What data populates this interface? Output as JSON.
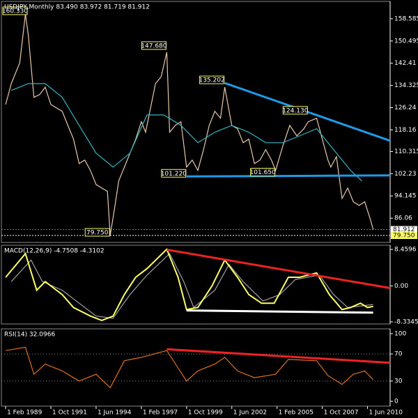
{
  "chart_data": [
    {
      "type": "line",
      "title": "USDJPY,Monthly  83.490 83.972 81.719 81.912",
      "xlim": [
        "1988-11",
        "2011-10"
      ],
      "ylim": [
        77.22,
        164.89
      ],
      "yticks": [
        158.585,
        150.495,
        142.41,
        134.325,
        126.24,
        118.16,
        110.315,
        102.23,
        94.145,
        86.06
      ],
      "series": [
        {
          "color": "#e9c9a8",
          "x": [
            "1989-02",
            "1989-06",
            "1989-12",
            "1990-04",
            "1990-06",
            "1990-10",
            "1991-02",
            "1991-06",
            "1991-10",
            "1992-06",
            "1992-10",
            "1993-02",
            "1993-06",
            "1993-10",
            "1994-02",
            "1994-06",
            "1994-10",
            "1995-02",
            "1995-04",
            "1995-07",
            "1995-10",
            "1996-02",
            "1996-06",
            "1996-10",
            "1997-02",
            "1997-05",
            "1997-12",
            "1998-04",
            "1998-08",
            "1998-10",
            "1999-02",
            "1999-06",
            "1999-10",
            "2000-02",
            "2000-06",
            "2000-10",
            "2001-02",
            "2001-06",
            "2001-10",
            "2002-01",
            "2002-06",
            "2002-10",
            "2003-02",
            "2003-06",
            "2003-10",
            "2004-02",
            "2004-06",
            "2004-10",
            "2005-01",
            "2005-06",
            "2005-11",
            "2006-04",
            "2006-09",
            "2006-12",
            "2007-06",
            "2007-10",
            "2008-02",
            "2008-04",
            "2008-08",
            "2008-12",
            "2009-04",
            "2009-08",
            "2009-12",
            "2010-04",
            "2010-08",
            "2010-10"
          ],
          "values": [
            127.4,
            135,
            142.6,
            160.3,
            152.7,
            130,
            131,
            133.7,
            127.4,
            124.9,
            119.8,
            114.8,
            105.9,
            107.2,
            103.4,
            98.3,
            97,
            95.8,
            79.8,
            89.4,
            99.6,
            104.6,
            109.7,
            114.8,
            121.1,
            117.3,
            135,
            137.5,
            146.4,
            117.3,
            119.8,
            121.1,
            104.6,
            107.2,
            103.4,
            111,
            119.8,
            124.9,
            122.4,
            133.7,
            119.8,
            118.6,
            113.5,
            114.8,
            105.9,
            107.2,
            111,
            107.2,
            103.4,
            112.2,
            119.8,
            116,
            118.6,
            121.1,
            122.4,
            114.8,
            107.2,
            104.6,
            108.4,
            93.2,
            97,
            92,
            90.7,
            92,
            85.6,
            81.9
          ]
        },
        {
          "color": "#2fb8c6",
          "x": [
            "1989-06",
            "1990-06",
            "1991-06",
            "1992-06",
            "1993-06",
            "1994-06",
            "1995-06",
            "1996-06",
            "1997-06",
            "1998-06",
            "1999-06",
            "2000-06",
            "2001-06",
            "2002-06",
            "2003-06",
            "2004-06",
            "2005-06",
            "2006-06",
            "2007-06",
            "2008-06",
            "2009-06",
            "2010-02"
          ],
          "values": [
            132.5,
            135,
            135,
            130,
            119.8,
            109.7,
            104.6,
            109.7,
            123.6,
            123.6,
            119.8,
            113.5,
            117.3,
            119.8,
            117.3,
            113.5,
            113.5,
            116,
            118.6,
            111,
            103.4,
            99.6
          ]
        }
      ],
      "lines": [
        {
          "color": "#1e9be8",
          "x": [
            "2002-01",
            "2011-10"
          ],
          "y": [
            135.2,
            114.2
          ]
        },
        {
          "color": "#1e9be8",
          "x": [
            "1999-10",
            "2011-10"
          ],
          "y": [
            101.22,
            101.6
          ]
        }
      ],
      "hlines": [
        {
          "y": 79.75,
          "color": "#ffffff"
        },
        {
          "y": 81.912,
          "color": "#777777"
        }
      ],
      "annotations": [
        {
          "label": "160.330",
          "x": "1990-04",
          "y": 160.33
        },
        {
          "label": "147.680",
          "x": "1998-08",
          "y": 147.68
        },
        {
          "label": "135.202",
          "x": "2002-01",
          "y": 135.202
        },
        {
          "label": "124.130",
          "x": "2006-12",
          "y": 124.13
        },
        {
          "label": "101.220",
          "x": "1999-10",
          "y": 101.22
        },
        {
          "label": "101.650",
          "x": "2005-01",
          "y": 101.65
        },
        {
          "label": "79.750",
          "x": "1995-04",
          "y": 79.75
        }
      ],
      "price_tags": [
        {
          "label": "81.912",
          "value": 81.912,
          "color": "#ffffff"
        },
        {
          "label": "79.750",
          "value": 79.75,
          "color": "#ffff66"
        }
      ]
    },
    {
      "type": "line",
      "title": "MACD(12,26,9) -4.7508 -4.3102",
      "xlim": [
        "1988-11",
        "2011-10"
      ],
      "ylim": [
        -8.82,
        9.435
      ],
      "yticks": [
        8.4596,
        {
          "value": 0,
          "label": "0.00"
        },
        -8.3345
      ],
      "series": [
        {
          "color": "#a0a0a0",
          "x": [
            "1989-06",
            "1990-08",
            "1991-04",
            "1992-06",
            "1993-06",
            "1994-06",
            "1995-06",
            "1996-06",
            "1997-06",
            "1998-10",
            "1999-08",
            "2000-03",
            "2001-06",
            "2002-04",
            "2003-02",
            "2004-04",
            "2005-04",
            "2006-03",
            "2007-08",
            "2008-06",
            "2009-04",
            "2010-10"
          ],
          "values": [
            1,
            6,
            1,
            -1,
            -4,
            -7,
            -7.5,
            -2,
            2.5,
            7.5,
            1,
            -5,
            -1,
            5,
            1,
            -3.5,
            -2,
            1.5,
            2.5,
            -2,
            -5,
            -4.31
          ]
        },
        {
          "color": "#ffff66",
          "x": [
            "1989-02",
            "1990-04",
            "1990-12",
            "1991-06",
            "1992-06",
            "1993-02",
            "1994-02",
            "1994-10",
            "1995-06",
            "1996-02",
            "1996-10",
            "1997-06",
            "1998-08",
            "1999-04",
            "1999-10",
            "2000-06",
            "2001-04",
            "2002-01",
            "2002-10",
            "2003-06",
            "2004-03",
            "2004-12",
            "2005-10",
            "2006-06",
            "2007-06",
            "2008-03",
            "2008-12",
            "2009-06",
            "2010-01",
            "2010-06",
            "2010-10"
          ],
          "values": [
            2,
            7.5,
            -1,
            1,
            -2,
            -5,
            -7,
            -8,
            -7,
            -2,
            2,
            4,
            8.5,
            2,
            -5.5,
            -5,
            0,
            6,
            2,
            -2,
            -4,
            -4,
            2,
            2,
            3,
            -2,
            -5.5,
            -5,
            -4,
            -5,
            -4.75
          ]
        }
      ],
      "lines": [
        {
          "color": "#ee2222",
          "x": [
            "1998-08",
            "2011-10"
          ],
          "y": [
            8.4,
            -0.5
          ]
        },
        {
          "color": "#ffffff",
          "x": [
            "1999-10",
            "2010-10"
          ],
          "y": [
            -5.7,
            -6.2
          ]
        }
      ]
    },
    {
      "type": "line",
      "title": "RSI(14) 32.0966",
      "xlim": [
        "1988-11",
        "2011-10"
      ],
      "ylim": [
        -7.2,
        107.2
      ],
      "yticks": [
        100,
        70,
        30,
        0
      ],
      "levels": [
        70,
        30
      ],
      "xticks": [
        {
          "value": "1989-02",
          "label": "1 Feb 1989"
        },
        {
          "value": "1991-10",
          "label": "1 Oct 1991"
        },
        {
          "value": "1994-06",
          "label": "1 Jun 1994"
        },
        {
          "value": "1997-02",
          "label": "1 Feb 1997"
        },
        {
          "value": "1999-10",
          "label": "1 Oct 1999"
        },
        {
          "value": "2002-06",
          "label": "1 Jun 2002"
        },
        {
          "value": "2005-02",
          "label": "1 Feb 2005"
        },
        {
          "value": "2007-10",
          "label": "1 Oct 2007"
        },
        {
          "value": "2010-06",
          "label": "1 Jun 2010"
        }
      ],
      "series": [
        {
          "color": "#e0701c",
          "x": [
            "1989-02",
            "1990-04",
            "1990-10",
            "1991-06",
            "1992-06",
            "1993-06",
            "1994-06",
            "1995-04",
            "1996-02",
            "1997-02",
            "1998-08",
            "1999-10",
            "2000-06",
            "2001-06",
            "2002-01",
            "2002-10",
            "2003-10",
            "2005-01",
            "2005-10",
            "2007-06",
            "2008-02",
            "2008-12",
            "2009-08",
            "2010-04",
            "2010-10"
          ],
          "values": [
            75,
            80,
            40,
            55,
            45,
            30,
            40,
            20,
            60,
            65,
            75,
            30,
            45,
            55,
            65,
            45,
            35,
            40,
            62,
            60,
            38,
            25,
            40,
            45,
            32
          ]
        }
      ],
      "lines": [
        {
          "color": "#ee2222",
          "x": [
            "1998-08",
            "2011-10"
          ],
          "y": [
            77,
            57
          ]
        }
      ]
    }
  ]
}
